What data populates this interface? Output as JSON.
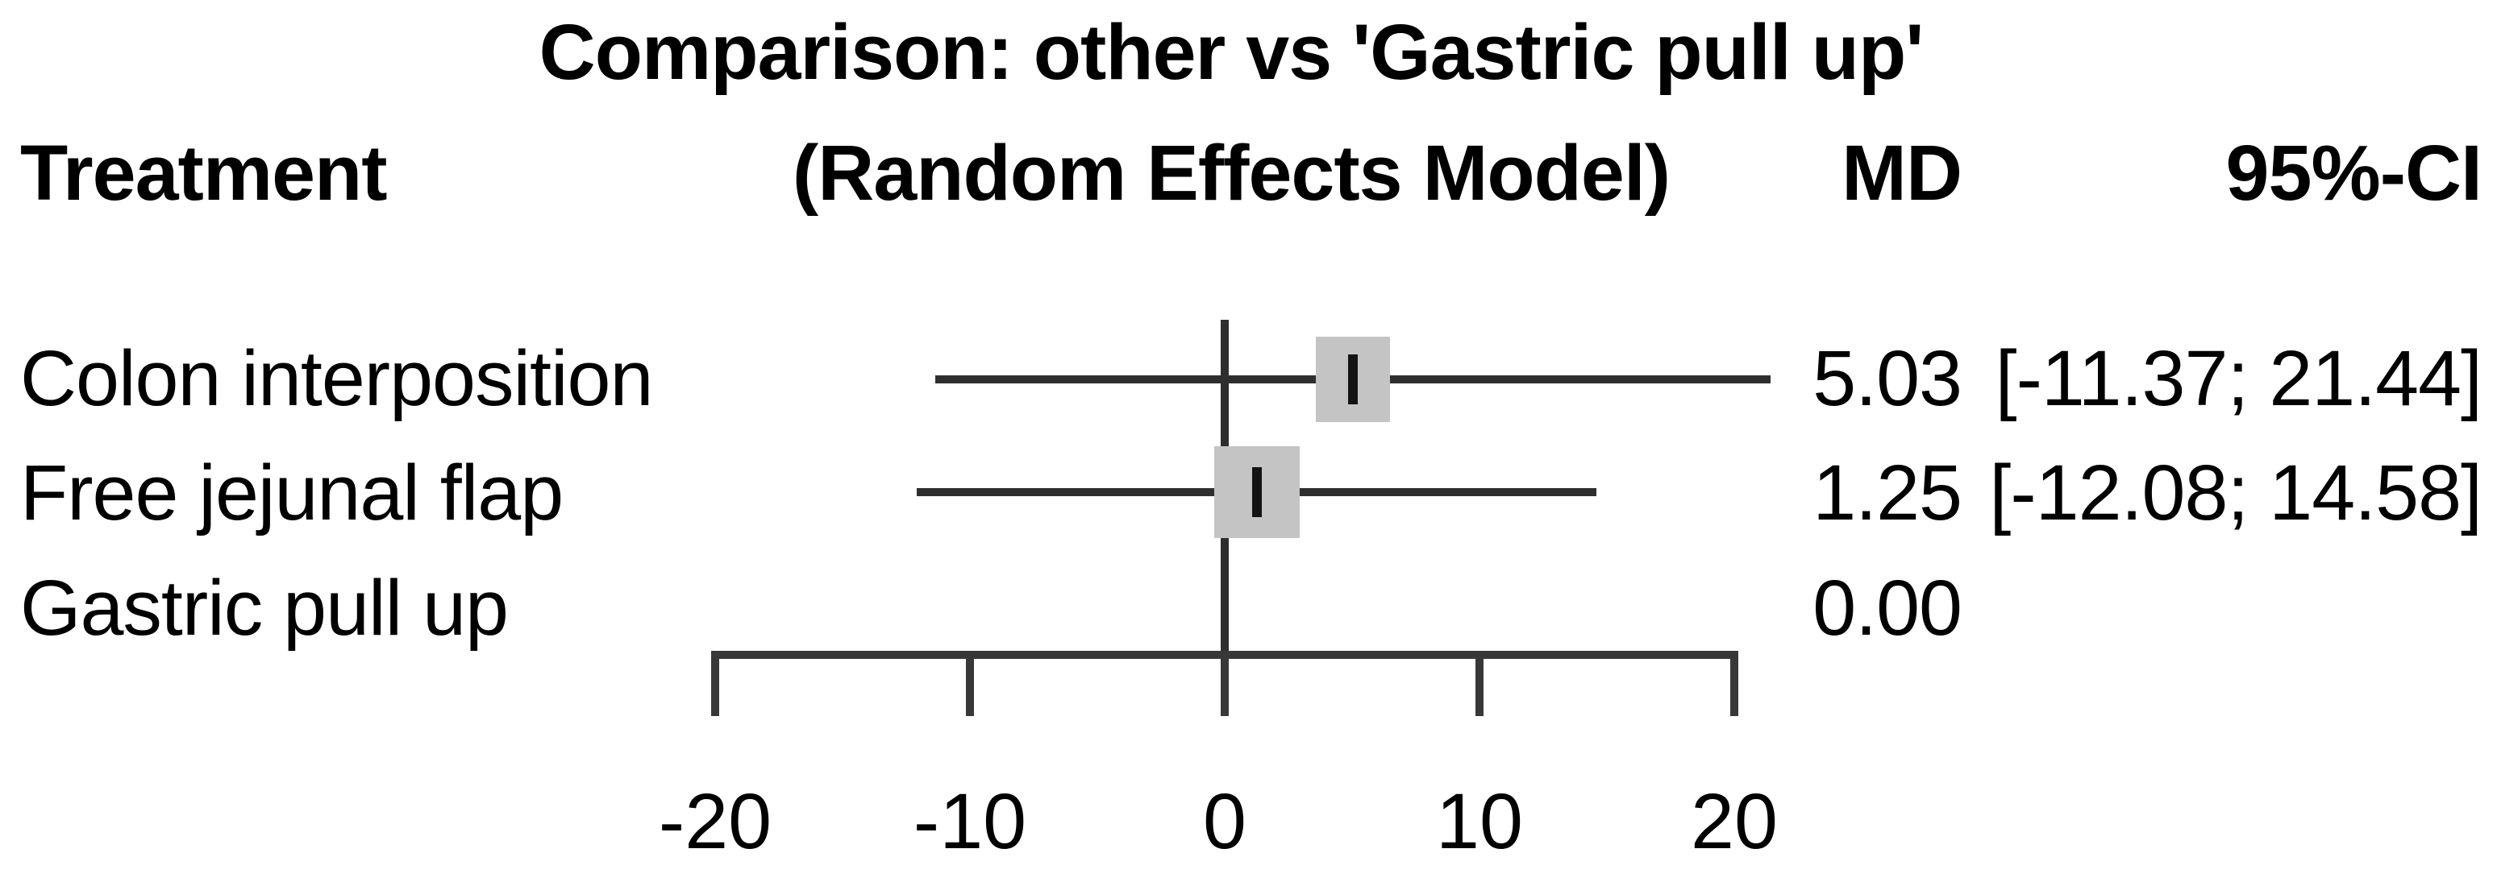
{
  "chart_data": {
    "type": "scatter",
    "subtype": "forest-plot",
    "title": "Comparison: other vs 'Gastric pull up'",
    "subtitle": "(Random Effects Model)",
    "columns": {
      "treatment": "Treatment",
      "md": "MD",
      "ci": "95%-CI"
    },
    "rows": [
      {
        "treatment": "Colon interposition",
        "md": 5.03,
        "ci_lower": -11.37,
        "ci_upper": 21.44,
        "md_text": "5.03",
        "ci_text": "[-11.37; 21.44]",
        "has_ci": true
      },
      {
        "treatment": "Free jejunal flap",
        "md": 1.25,
        "ci_lower": -12.08,
        "ci_upper": 14.58,
        "md_text": "1.25",
        "ci_text": "[-12.08; 14.58]",
        "has_ci": true
      },
      {
        "treatment": "Gastric pull up",
        "md": 0.0,
        "md_text": "0.00",
        "ci_text": "",
        "has_ci": false
      }
    ],
    "reference_treatment": "Gastric pull up",
    "reference_line": 0,
    "xlim": [
      -20,
      20
    ],
    "x_ticks": [
      -20,
      -10,
      0,
      10,
      20
    ],
    "x_tick_labels": [
      "-20",
      "-10",
      "0",
      "10",
      "20"
    ],
    "grid": false,
    "legend": "none"
  },
  "colors": {
    "background": "#ffffff",
    "text": "#000000",
    "line": "#2e2e2e",
    "axis": "#383838",
    "square_fill": "#c4c4c4",
    "marker": "#141414"
  }
}
